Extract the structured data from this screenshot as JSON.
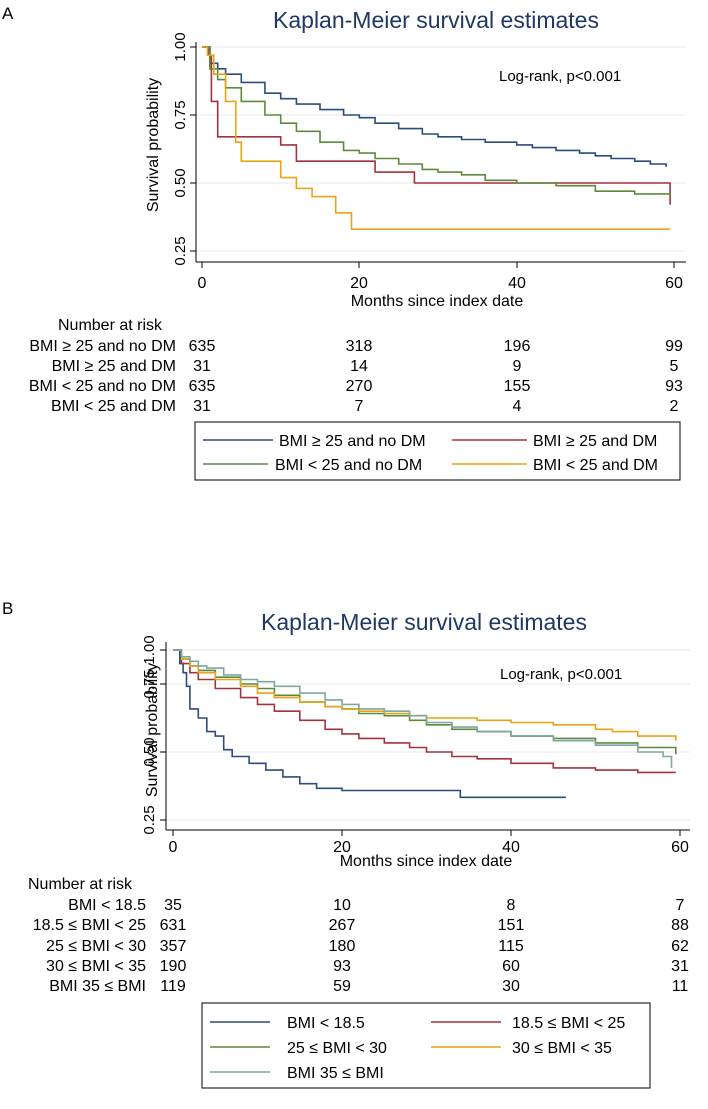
{
  "colors": {
    "blue": "#2b4c7e",
    "red": "#a3323f",
    "green": "#5b8a3a",
    "orange": "#e8a317",
    "gray": "#7fa6a0",
    "title": "#1f3864"
  },
  "chart_data": [
    {
      "type": "line",
      "panel_label": "A",
      "title": "Kaplan-Meier survival estimates",
      "xlabel": "Months since index date",
      "ylabel": "Survival probability",
      "xlim": [
        0,
        60
      ],
      "ylim": [
        0.25,
        1.0
      ],
      "xticks": [
        "0",
        "20",
        "40",
        "60"
      ],
      "yticks": [
        "0.25",
        "0.50",
        "0.75",
        "1.00"
      ],
      "annotation": "Log-rank, p<0.001",
      "grid": true,
      "series": [
        {
          "name": "BMI ≥ 25 and no DM",
          "color": "blue",
          "x": [
            0,
            1,
            2,
            3,
            5,
            8,
            10,
            12,
            15,
            18,
            20,
            22,
            25,
            28,
            30,
            33,
            36,
            40,
            42,
            45,
            48,
            50,
            52,
            55,
            57,
            59
          ],
          "y": [
            1.0,
            0.94,
            0.92,
            0.9,
            0.87,
            0.83,
            0.81,
            0.79,
            0.77,
            0.75,
            0.74,
            0.72,
            0.7,
            0.68,
            0.67,
            0.66,
            0.65,
            0.64,
            0.63,
            0.62,
            0.61,
            0.6,
            0.59,
            0.58,
            0.57,
            0.56
          ]
        },
        {
          "name": "BMI ≥ 25 and DM",
          "color": "red",
          "x": [
            0,
            0.8,
            1.2,
            2,
            10,
            12,
            22,
            27,
            40,
            59,
            59.5
          ],
          "y": [
            1.0,
            0.97,
            0.8,
            0.67,
            0.64,
            0.58,
            0.54,
            0.5,
            0.5,
            0.5,
            0.42
          ]
        },
        {
          "name": "BMI < 25 and no DM",
          "color": "green",
          "x": [
            0,
            1,
            2,
            3,
            5,
            8,
            10,
            12,
            15,
            18,
            20,
            22,
            25,
            28,
            30,
            33,
            36,
            40,
            45,
            50,
            55,
            59.5
          ],
          "y": [
            1.0,
            0.92,
            0.88,
            0.85,
            0.8,
            0.75,
            0.72,
            0.69,
            0.65,
            0.62,
            0.61,
            0.59,
            0.57,
            0.55,
            0.54,
            0.53,
            0.51,
            0.5,
            0.49,
            0.47,
            0.46,
            0.45
          ]
        },
        {
          "name": "BMI < 25 and DM",
          "color": "orange",
          "x": [
            0,
            0.7,
            1.5,
            3,
            4.3,
            5,
            10,
            12,
            14,
            17,
            19,
            30,
            59.5
          ],
          "y": [
            1.0,
            0.97,
            0.9,
            0.8,
            0.65,
            0.58,
            0.52,
            0.48,
            0.45,
            0.39,
            0.33,
            0.33,
            0.33
          ]
        }
      ],
      "risk_table": {
        "title": "Number at risk",
        "time_points": [
          0,
          20,
          40,
          60
        ],
        "rows": [
          {
            "label": "BMI ≥ 25 and no DM",
            "values": [
              "635",
              "318",
              "196",
              "99"
            ]
          },
          {
            "label": "BMI ≥ 25 and DM",
            "values": [
              "31",
              "14",
              "9",
              "5"
            ]
          },
          {
            "label": "BMI < 25 and no DM",
            "values": [
              "635",
              "270",
              "155",
              "93"
            ]
          },
          {
            "label": "BMI < 25 and DM",
            "values": [
              "31",
              "7",
              "4",
              "2"
            ]
          }
        ]
      },
      "legend": {
        "columns": 2,
        "items": [
          {
            "label": "BMI ≥ 25 and no DM",
            "color": "blue"
          },
          {
            "label": "BMI ≥ 25 and DM",
            "color": "red"
          },
          {
            "label": "BMI < 25 and no DM",
            "color": "green"
          },
          {
            "label": "BMI < 25 and DM",
            "color": "orange"
          }
        ]
      }
    },
    {
      "type": "line",
      "panel_label": "B",
      "title": "Kaplan-Meier survival estimates",
      "xlabel": "Months since index date",
      "ylabel": "Survival probability",
      "xlim": [
        0,
        60
      ],
      "ylim": [
        0.25,
        1.0
      ],
      "xticks": [
        "0",
        "20",
        "40",
        "60"
      ],
      "yticks": [
        "0.25",
        "0.50",
        "0.75",
        "1.00"
      ],
      "annotation": "Log-rank, p<0.001",
      "grid": true,
      "series": [
        {
          "name": "BMI < 18.5",
          "color": "blue",
          "x": [
            0,
            0.8,
            1.2,
            1.6,
            2,
            3,
            4,
            5,
            6,
            7,
            9,
            11,
            13,
            15,
            17,
            20,
            34,
            46.5
          ],
          "y": [
            1.0,
            0.94,
            0.9,
            0.84,
            0.74,
            0.7,
            0.64,
            0.62,
            0.56,
            0.53,
            0.5,
            0.47,
            0.44,
            0.41,
            0.39,
            0.38,
            0.35,
            0.35
          ]
        },
        {
          "name": "18.5 ≤ BMI < 25",
          "color": "red",
          "x": [
            0,
            1,
            2,
            3,
            5,
            8,
            10,
            12,
            15,
            18,
            20,
            22,
            25,
            28,
            30,
            33,
            36,
            40,
            45,
            50,
            55,
            59.5
          ],
          "y": [
            1.0,
            0.94,
            0.9,
            0.87,
            0.83,
            0.79,
            0.76,
            0.73,
            0.69,
            0.65,
            0.63,
            0.61,
            0.59,
            0.57,
            0.55,
            0.53,
            0.52,
            0.5,
            0.48,
            0.47,
            0.46,
            0.46
          ]
        },
        {
          "name": "25 ≤ BMI < 30",
          "color": "green",
          "x": [
            0,
            1,
            2,
            3,
            5,
            8,
            10,
            12,
            15,
            18,
            20,
            22,
            25,
            28,
            30,
            33,
            36,
            40,
            45,
            50,
            55,
            59.5
          ],
          "y": [
            1.0,
            0.96,
            0.93,
            0.91,
            0.88,
            0.85,
            0.83,
            0.8,
            0.77,
            0.75,
            0.74,
            0.72,
            0.71,
            0.69,
            0.67,
            0.65,
            0.64,
            0.62,
            0.61,
            0.59,
            0.57,
            0.54
          ]
        },
        {
          "name": "30 ≤ BMI < 35",
          "color": "orange",
          "x": [
            0,
            1,
            2,
            3,
            5,
            8,
            10,
            12,
            15,
            18,
            20,
            22,
            25,
            28,
            30,
            33,
            36,
            40,
            45,
            50,
            52,
            55,
            59.5
          ],
          "y": [
            1.0,
            0.96,
            0.93,
            0.9,
            0.87,
            0.84,
            0.81,
            0.79,
            0.77,
            0.75,
            0.74,
            0.73,
            0.72,
            0.71,
            0.7,
            0.7,
            0.69,
            0.68,
            0.67,
            0.65,
            0.64,
            0.62,
            0.6
          ]
        },
        {
          "name": "BMI 35 ≤ BMI",
          "color": "gray",
          "x": [
            0,
            1,
            2,
            3,
            4,
            6,
            8,
            10,
            12,
            15,
            18,
            20,
            22,
            25,
            28,
            30,
            33,
            36,
            40,
            45,
            50,
            55,
            58,
            59
          ],
          "y": [
            1.0,
            0.97,
            0.95,
            0.93,
            0.92,
            0.89,
            0.87,
            0.86,
            0.84,
            0.81,
            0.78,
            0.76,
            0.74,
            0.73,
            0.71,
            0.68,
            0.66,
            0.64,
            0.62,
            0.6,
            0.58,
            0.55,
            0.53,
            0.48
          ]
        }
      ],
      "risk_table": {
        "title": "Number at risk",
        "time_points": [
          0,
          20,
          40,
          60
        ],
        "rows": [
          {
            "label": "BMI < 18.5",
            "values": [
              "35",
              "10",
              "8",
              "7"
            ]
          },
          {
            "label": "18.5 ≤ BMI < 25",
            "values": [
              "631",
              "267",
              "151",
              "88"
            ]
          },
          {
            "label": "25 ≤ BMI < 30",
            "values": [
              "357",
              "180",
              "115",
              "62"
            ]
          },
          {
            "label": "30 ≤ BMI < 35",
            "values": [
              "190",
              "93",
              "60",
              "31"
            ]
          },
          {
            "label": "BMI 35 ≤ BMI",
            "values": [
              "119",
              "59",
              "30",
              "11"
            ]
          }
        ]
      },
      "legend": {
        "columns": 2,
        "items": [
          {
            "label": "BMI < 18.5",
            "color": "blue"
          },
          {
            "label": "18.5 ≤ BMI < 25",
            "color": "red"
          },
          {
            "label": "25 ≤ BMI < 30",
            "color": "green"
          },
          {
            "label": "30 ≤ BMI < 35",
            "color": "orange"
          },
          {
            "label": "BMI 35 ≤ BMI",
            "color": "gray"
          }
        ]
      }
    }
  ]
}
